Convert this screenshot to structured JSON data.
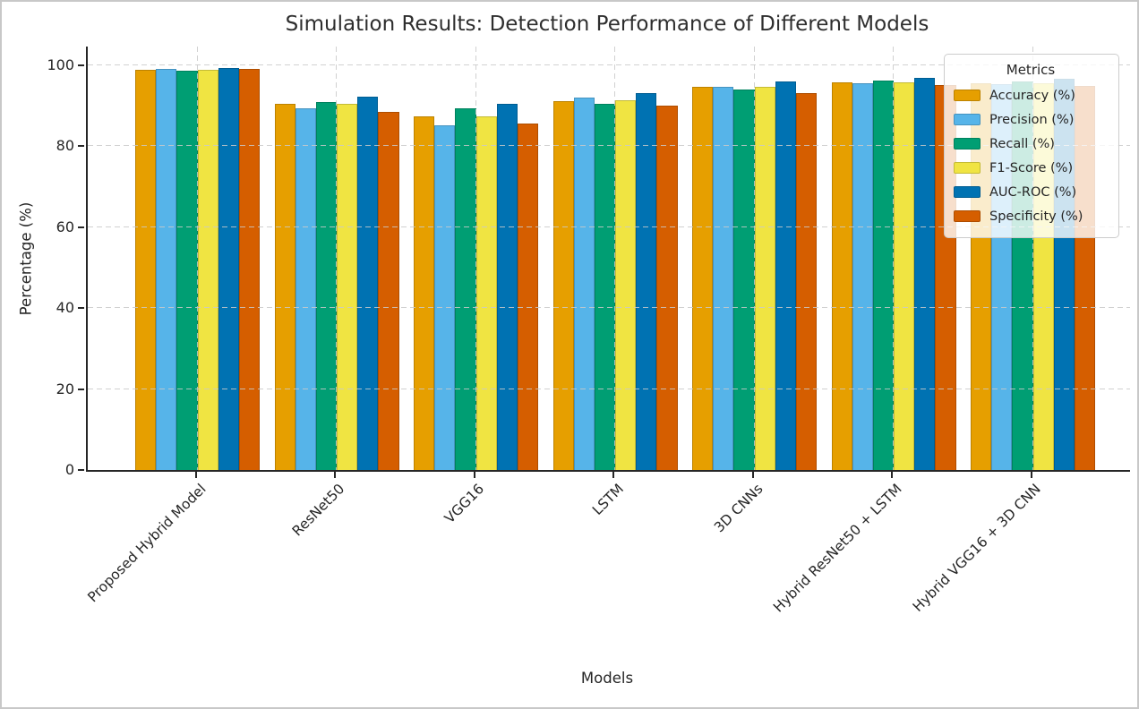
{
  "chart_data": {
    "type": "bar",
    "title": "Simulation Results: Detection Performance of Different Models",
    "xlabel": "Models",
    "ylabel": "Percentage (%)",
    "legend_title": "Metrics",
    "legend_position": "upper right",
    "grid": "dashed",
    "ylim": [
      0,
      100
    ],
    "yticks": [
      0,
      20,
      40,
      60,
      80,
      100
    ],
    "categories": [
      "Proposed Hybrid Model",
      "ResNet50",
      "VGG16",
      "LSTM",
      "3D CNNs",
      "Hybrid ResNet50 + LSTM",
      "Hybrid VGG16 + 3D CNN"
    ],
    "series": [
      {
        "name": "Accuracy (%)",
        "color": "#E69F00",
        "values": [
          99.0,
          90.5,
          87.5,
          91.2,
          94.6,
          95.8,
          95.6
        ]
      },
      {
        "name": "Precision (%)",
        "color": "#56B4E9",
        "values": [
          99.1,
          89.4,
          85.1,
          92.1,
          94.8,
          95.5,
          95.4
        ]
      },
      {
        "name": "Recall (%)",
        "color": "#009E73",
        "values": [
          98.6,
          91.0,
          89.3,
          90.6,
          94.1,
          96.2,
          96.0
        ]
      },
      {
        "name": "F1-Score (%)",
        "color": "#F0E442",
        "values": [
          98.9,
          90.4,
          87.4,
          91.3,
          94.6,
          95.8,
          95.6
        ]
      },
      {
        "name": "AUC-ROC (%)",
        "color": "#0072B2",
        "values": [
          99.4,
          92.2,
          90.5,
          93.1,
          96.0,
          96.9,
          96.6
        ]
      },
      {
        "name": "Specificity (%)",
        "color": "#D55E00",
        "values": [
          99.2,
          88.6,
          85.6,
          90.1,
          93.1,
          95.1,
          94.9
        ]
      }
    ]
  }
}
